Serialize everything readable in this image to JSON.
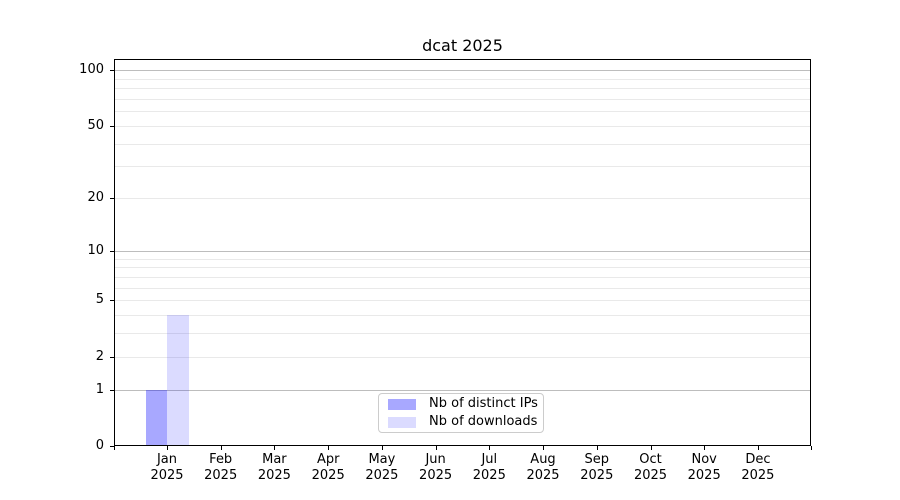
{
  "chart_data": {
    "type": "bar",
    "title": "dcat 2025",
    "categories": [
      "Jan",
      "Feb",
      "Mar",
      "Apr",
      "May",
      "Jun",
      "Jul",
      "Aug",
      "Sep",
      "Oct",
      "Nov",
      "Dec"
    ],
    "x_year_label": "2025",
    "series": [
      {
        "name": "Nb of distinct IPs",
        "values": [
          1,
          0,
          0,
          0,
          0,
          0,
          0,
          0,
          0,
          0,
          0,
          0
        ],
        "color": "rgba(0,0,255,0.34)"
      },
      {
        "name": "Nb of downloads",
        "values": [
          4,
          0,
          0,
          0,
          0,
          0,
          0,
          0,
          0,
          0,
          0,
          0
        ],
        "color": "rgba(0,0,255,0.14)"
      }
    ],
    "yscale": "log1p",
    "ylim": [
      0,
      115
    ],
    "ytick_labels": [
      0,
      1,
      2,
      5,
      10,
      20,
      50,
      100
    ],
    "grid_major_values": [
      1,
      10,
      100
    ],
    "grid_minor_values": [
      2,
      3,
      4,
      5,
      6,
      7,
      8,
      9,
      20,
      30,
      40,
      50,
      60,
      70,
      80,
      90
    ],
    "grid": "horizontal",
    "legend_position": "lower center",
    "colors": {
      "grid_major": "#bdbdbd",
      "grid_minor": "#e9e9e9",
      "axis": "#000000",
      "background": "#ffffff"
    }
  }
}
